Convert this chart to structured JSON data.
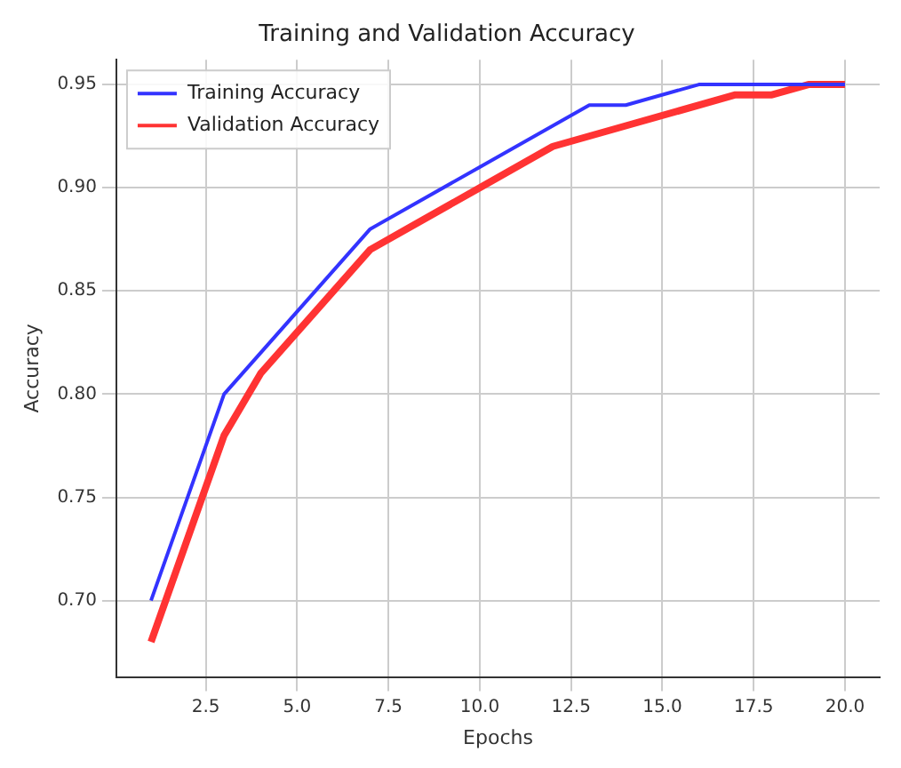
{
  "chart_data": {
    "type": "line",
    "title": "Training and Validation Accuracy",
    "xlabel": "Epochs",
    "ylabel": "Accuracy",
    "series": [
      {
        "name": "Training Accuracy",
        "color": "#3333ff",
        "x": [
          1,
          3,
          7,
          10,
          12,
          13,
          14,
          16,
          19,
          20
        ],
        "values": [
          0.7,
          0.8,
          0.88,
          0.91,
          0.93,
          0.94,
          0.94,
          0.95,
          0.95,
          0.95
        ]
      },
      {
        "name": "Validation Accuracy",
        "color": "#ff3333",
        "x": [
          1,
          3,
          4,
          7,
          10,
          12,
          14,
          17,
          18,
          19,
          20
        ],
        "values": [
          0.68,
          0.78,
          0.81,
          0.87,
          0.9,
          0.92,
          0.93,
          0.945,
          0.945,
          0.95,
          0.95
        ]
      }
    ],
    "xlim": [
      0.05,
      20.95
    ],
    "ylim": [
      0.663,
      0.962
    ],
    "xticks": [
      {
        "value": 2.5,
        "label": "2.5"
      },
      {
        "value": 5,
        "label": "5.0"
      },
      {
        "value": 7.5,
        "label": "7.5"
      },
      {
        "value": 10,
        "label": "10.0"
      },
      {
        "value": 12.5,
        "label": "12.5"
      },
      {
        "value": 15,
        "label": "15.0"
      },
      {
        "value": 17.5,
        "label": "17.5"
      },
      {
        "value": 20,
        "label": "20.0"
      }
    ],
    "yticks": [
      {
        "value": 0.7,
        "label": "0.70"
      },
      {
        "value": 0.75,
        "label": "0.75"
      },
      {
        "value": 0.8,
        "label": "0.80"
      },
      {
        "value": 0.85,
        "label": "0.85"
      },
      {
        "value": 0.9,
        "label": "0.90"
      },
      {
        "value": 0.95,
        "label": "0.95"
      }
    ],
    "grid": true,
    "legend": "top left",
    "marker": "none",
    "line_style": "solid"
  }
}
